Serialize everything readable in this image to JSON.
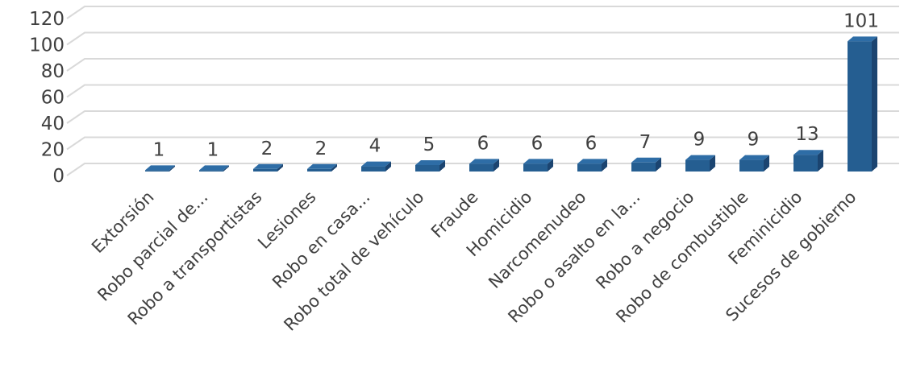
{
  "chart_data": {
    "type": "bar",
    "style": "3d-column",
    "categories": [
      "Extorsión",
      "Robo parcial de...",
      "Robo a transportistas",
      "Lesiones",
      "Robo en casa...",
      "Robo total de vehículo",
      "Fraude",
      "Homicidio",
      "Narcomenudeo",
      "Robo o asalto en la...",
      "Robo a negocio",
      "Robo de combustible",
      "Feminicidio",
      "Sucesos de gobierno"
    ],
    "values": [
      1,
      1,
      2,
      2,
      4,
      5,
      6,
      6,
      6,
      7,
      9,
      9,
      13,
      101
    ],
    "data_labels": [
      "1",
      "1",
      "2",
      "2",
      "4",
      "5",
      "6",
      "6",
      "6",
      "7",
      "9",
      "9",
      "13",
      "101"
    ],
    "ylim": [
      0,
      120
    ],
    "yticks": [
      "0",
      "20",
      "40",
      "60",
      "80",
      "100",
      "120"
    ],
    "grid": true,
    "legend": "none",
    "colors": {
      "bar_front": "#255E91",
      "bar_side": "#1B4470",
      "bar_top": "#2E6DA6",
      "grid": "#D9D9D9"
    }
  }
}
